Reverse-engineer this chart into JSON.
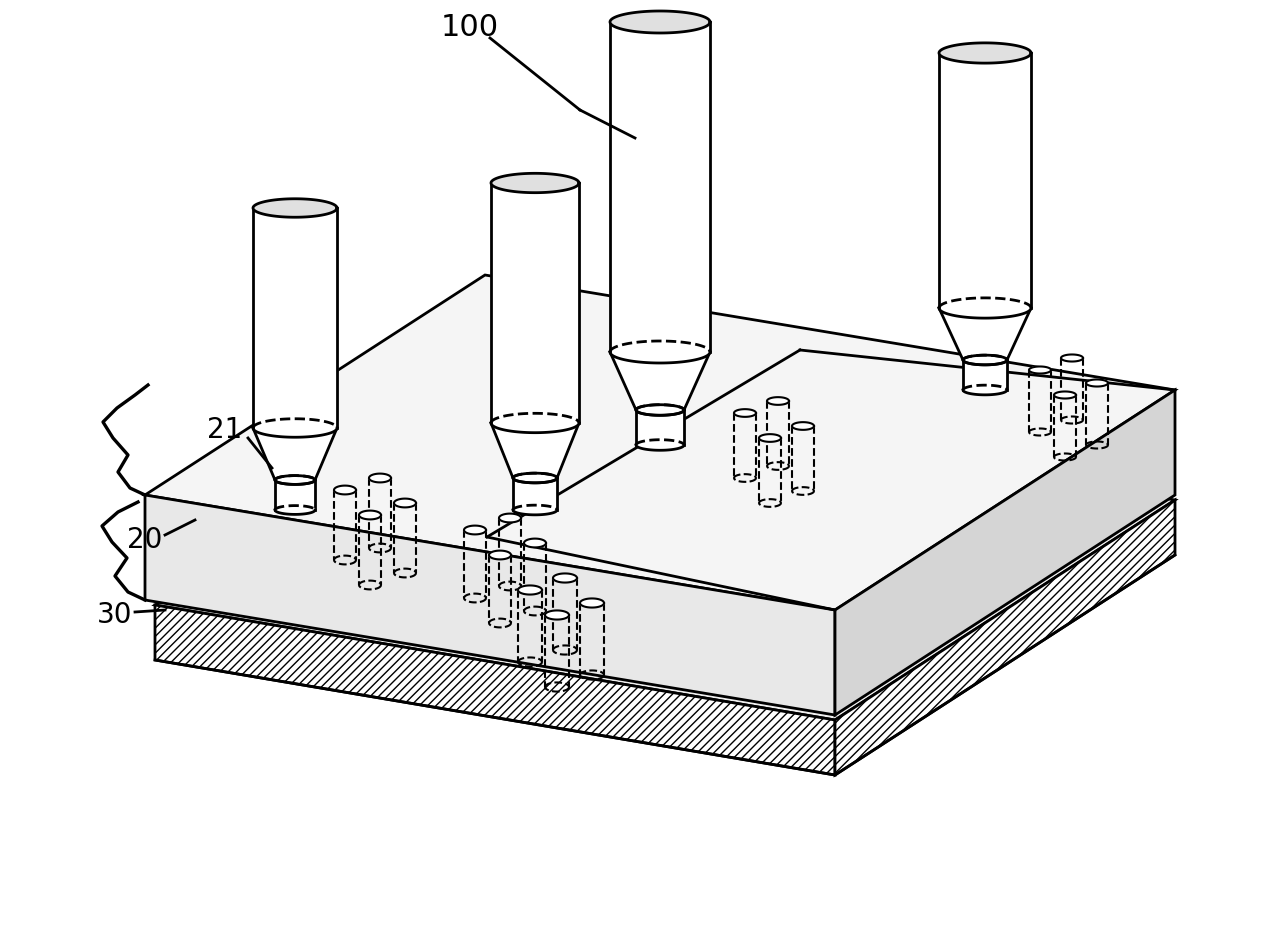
{
  "background_color": "#ffffff",
  "line_color": "#000000",
  "label_100": "100",
  "label_20": "20",
  "label_21": "21",
  "label_30": "30",
  "figsize": [
    12.7,
    9.3
  ],
  "dpi": 100
}
